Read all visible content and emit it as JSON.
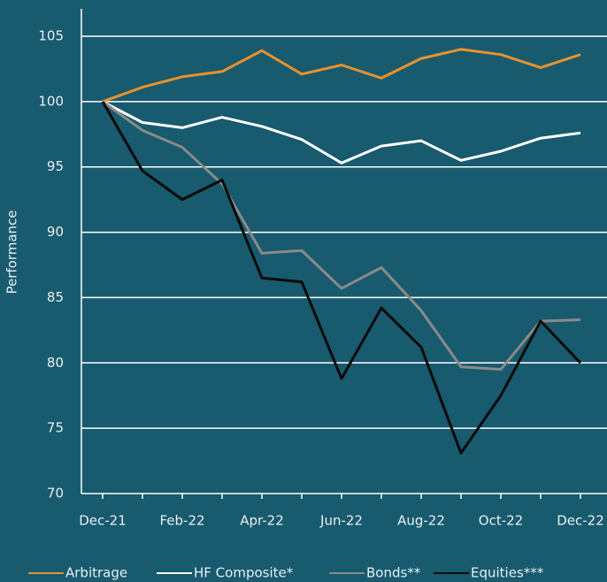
{
  "chart_data": {
    "type": "line",
    "y_label": "Performance",
    "categories": [
      "Dec-21",
      null,
      "Feb-22",
      null,
      "Apr-22",
      null,
      "Jun-22",
      null,
      "Aug-22",
      null,
      "Oct-22",
      null,
      "Dec-22"
    ],
    "series": [
      {
        "name": "Arbitrage",
        "color": "#e8922e",
        "values": [
          100,
          101.1,
          101.9,
          102.3,
          103.9,
          102.1,
          102.8,
          101.8,
          103.3,
          104.0,
          103.6,
          102.6,
          103.6
        ]
      },
      {
        "name": "HF Composite*",
        "color": "#ffffff",
        "values": [
          100,
          98.4,
          98.0,
          98.8,
          98.1,
          97.1,
          95.3,
          96.6,
          97.0,
          95.5,
          96.2,
          97.2,
          97.6
        ]
      },
      {
        "name": "Bonds**",
        "color": "#8a8a8a",
        "values": [
          100,
          97.8,
          96.5,
          93.7,
          88.4,
          88.6,
          85.7,
          87.3,
          84.0,
          79.7,
          79.5,
          83.2,
          83.3
        ]
      },
      {
        "name": "Equities***",
        "color": "#0a0a0a",
        "values": [
          100,
          94.7,
          92.5,
          94.0,
          86.5,
          86.2,
          78.8,
          84.2,
          81.2,
          73.1,
          77.5,
          83.2,
          80.0
        ]
      }
    ],
    "ylim": [
      70,
      105
    ],
    "yticks": [
      70,
      75,
      80,
      85,
      90,
      95,
      100,
      105
    ],
    "grid": true,
    "legend": "bottom"
  }
}
